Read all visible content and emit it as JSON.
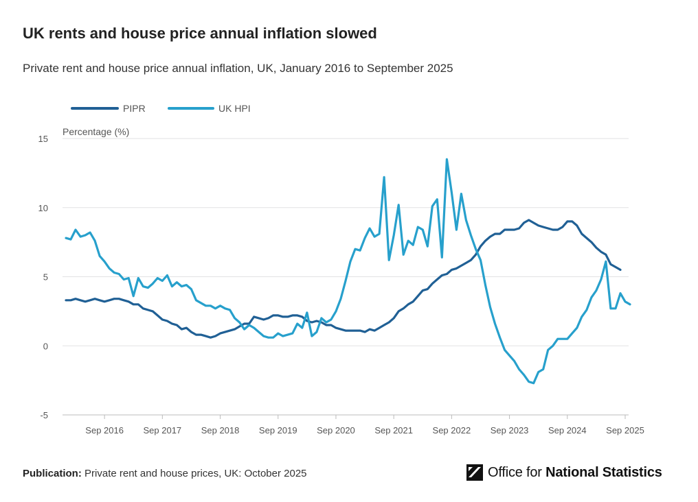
{
  "title": "UK rents and house price annual inflation slowed",
  "subtitle": "Private rent and house price annual inflation, UK, January 2016 to September 2025",
  "footer": {
    "label": "Publication:",
    "text": "Private rent and house prices, UK: October 2025"
  },
  "logo": {
    "text_regular": "Office for ",
    "text_bold": "National Statistics"
  },
  "colors": {
    "pipr": "#206095",
    "ukhpi": "#27a0cc",
    "grid": "#e2e2e3"
  },
  "chart_data": {
    "type": "line",
    "ylabel": "Percentage (%)",
    "ylim": [
      -5,
      15
    ],
    "yticks": [
      -5,
      0,
      5,
      10,
      15
    ],
    "xlim": [
      "2016-01",
      "2025-09"
    ],
    "xticks": [
      "Sep 2016",
      "Sep 2017",
      "Sep 2018",
      "Sep 2019",
      "Sep 2020",
      "Sep 2021",
      "Sep 2022",
      "Sep 2023",
      "Sep 2024",
      "Sep 2025"
    ],
    "legend": "top-left",
    "grid": true,
    "series": [
      {
        "name": "PIPR",
        "start": "2016-01",
        "values": [
          3.3,
          3.3,
          3.4,
          3.3,
          3.2,
          3.3,
          3.4,
          3.3,
          3.2,
          3.3,
          3.4,
          3.4,
          3.3,
          3.2,
          3.0,
          3.0,
          2.7,
          2.6,
          2.5,
          2.2,
          1.9,
          1.8,
          1.6,
          1.5,
          1.2,
          1.3,
          1.0,
          0.8,
          0.8,
          0.7,
          0.6,
          0.7,
          0.9,
          1.0,
          1.1,
          1.2,
          1.4,
          1.6,
          1.6,
          2.1,
          2.0,
          1.9,
          2.0,
          2.2,
          2.2,
          2.1,
          2.1,
          2.2,
          2.2,
          2.1,
          1.8,
          1.7,
          1.8,
          1.7,
          1.5,
          1.5,
          1.3,
          1.2,
          1.1,
          1.1,
          1.1,
          1.1,
          1.0,
          1.2,
          1.1,
          1.3,
          1.5,
          1.7,
          2.0,
          2.5,
          2.7,
          3.0,
          3.2,
          3.6,
          4.0,
          4.1,
          4.5,
          4.8,
          5.1,
          5.2,
          5.5,
          5.6,
          5.8,
          6.0,
          6.2,
          6.6,
          7.2,
          7.6,
          7.9,
          8.1,
          8.1,
          8.4,
          8.4,
          8.4,
          8.5,
          8.9,
          9.1,
          8.9,
          8.7,
          8.6,
          8.5,
          8.4,
          8.4,
          8.6,
          9.0,
          9.0,
          8.7,
          8.1,
          7.8,
          7.5,
          7.1,
          6.8,
          6.6,
          5.9,
          5.7,
          5.5
        ]
      },
      {
        "name": "UK HPI",
        "start": "2016-01",
        "values": [
          7.8,
          7.7,
          8.4,
          7.9,
          8.0,
          8.2,
          7.6,
          6.5,
          6.1,
          5.6,
          5.3,
          5.2,
          4.8,
          4.9,
          3.6,
          4.9,
          4.3,
          4.2,
          4.5,
          4.9,
          4.7,
          5.1,
          4.3,
          4.6,
          4.3,
          4.4,
          4.1,
          3.3,
          3.1,
          2.9,
          2.9,
          2.7,
          2.9,
          2.7,
          2.6,
          2.0,
          1.7,
          1.2,
          1.5,
          1.3,
          1.0,
          0.7,
          0.6,
          0.6,
          0.9,
          0.7,
          0.8,
          0.9,
          1.6,
          1.3,
          2.4,
          0.7,
          1.0,
          2.0,
          1.7,
          1.9,
          2.5,
          3.4,
          4.7,
          6.1,
          7.0,
          6.9,
          7.8,
          8.5,
          7.9,
          8.1,
          12.2,
          6.2,
          8.0,
          10.2,
          6.6,
          7.6,
          7.3,
          8.6,
          8.4,
          7.2,
          10.1,
          10.6,
          6.4,
          13.5,
          11.1,
          8.4,
          11.0,
          9.1,
          8.0,
          7.0,
          6.2,
          4.4,
          2.8,
          1.6,
          0.6,
          -0.3,
          -0.7,
          -1.1,
          -1.7,
          -2.1,
          -2.6,
          -2.7,
          -1.9,
          -1.7,
          -0.3,
          0.0,
          0.5,
          0.5,
          0.5,
          0.9,
          1.3,
          2.1,
          2.6,
          3.5,
          4.0,
          4.8,
          6.1,
          2.7,
          2.7,
          3.8,
          3.2,
          3.0
        ]
      }
    ]
  }
}
